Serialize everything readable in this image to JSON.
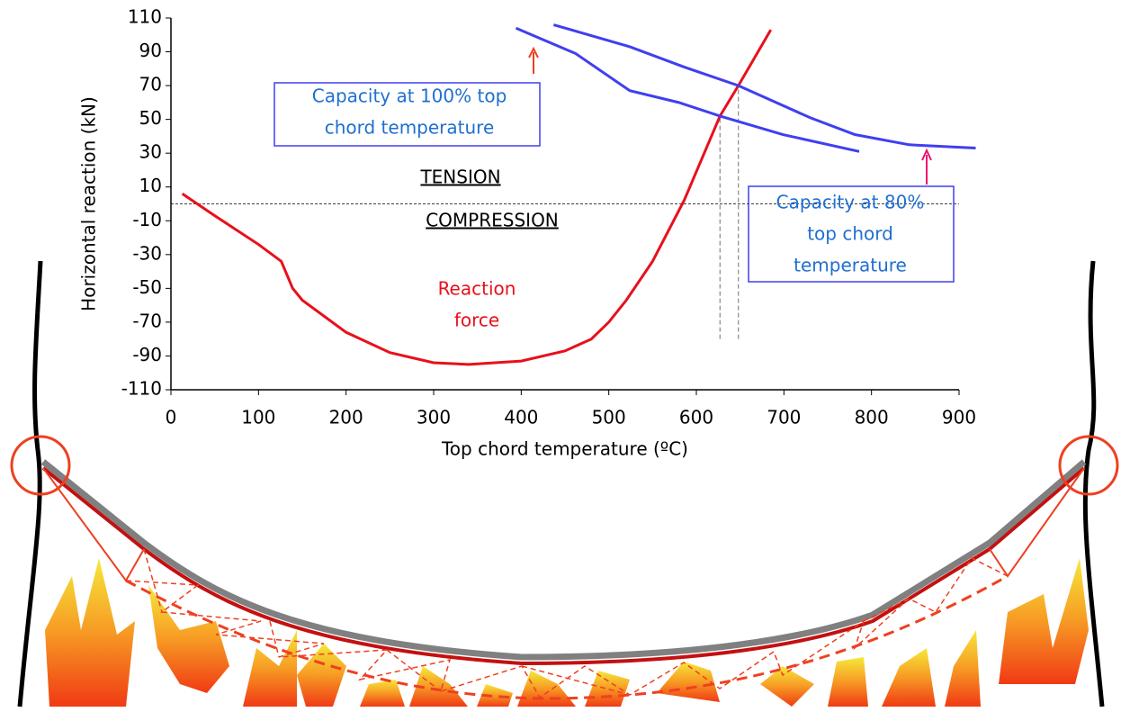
{
  "chart_data": {
    "type": "line",
    "xlabel": "Top chord temperature (ºC)",
    "ylabel": "Horizontal reaction (kN)",
    "xlim": [
      0,
      900
    ],
    "ylim": [
      -110,
      110
    ],
    "xticks": [
      0,
      100,
      200,
      300,
      400,
      500,
      600,
      700,
      800,
      900
    ],
    "yticks": [
      -110,
      -90,
      -70,
      -50,
      -30,
      -10,
      10,
      30,
      50,
      70,
      90,
      110
    ],
    "series": [
      {
        "name": "Reaction force",
        "color": "#e8101c",
        "x": [
          13,
          50,
          100,
          126,
          139,
          150,
          200,
          250,
          300,
          340,
          400,
          450,
          480,
          500,
          520,
          550,
          586,
          627,
          648,
          685
        ],
        "values": [
          6,
          -7,
          -24,
          -34,
          -50,
          -57,
          -76,
          -88,
          -94,
          -95,
          -93,
          -87,
          -80,
          -70,
          -57,
          -34,
          2,
          52,
          70,
          103
        ]
      },
      {
        "name": "Capacity at 100% top chord temperature",
        "color": "#3f3ff0",
        "x": [
          394,
          462,
          524,
          580,
          627,
          699,
          786
        ],
        "values": [
          104,
          89,
          67,
          60,
          52,
          41,
          31
        ]
      },
      {
        "name": "Capacity at 80% top chord temperature",
        "color": "#3f3ff0",
        "x": [
          437,
          524,
          586,
          648,
          730,
          781,
          843,
          919
        ],
        "values": [
          106,
          93,
          81,
          70,
          51,
          41,
          35,
          33
        ]
      }
    ],
    "reference_lines": [
      {
        "x": 627,
        "y": [
          -80,
          52
        ]
      },
      {
        "x": 648,
        "y": [
          -80,
          70
        ]
      }
    ],
    "zero_line": true,
    "annotations": [
      {
        "lines": [
          "TENSION"
        ]
      },
      {
        "lines": [
          "COMPRESSION"
        ]
      },
      {
        "lines": [
          "Reaction",
          "force"
        ]
      },
      {
        "lines": [
          "Capacity at 100% top",
          "chord temperature"
        ]
      },
      {
        "lines": [
          "Capacity at 80%",
          "top chord",
          "temperature"
        ]
      }
    ]
  }
}
